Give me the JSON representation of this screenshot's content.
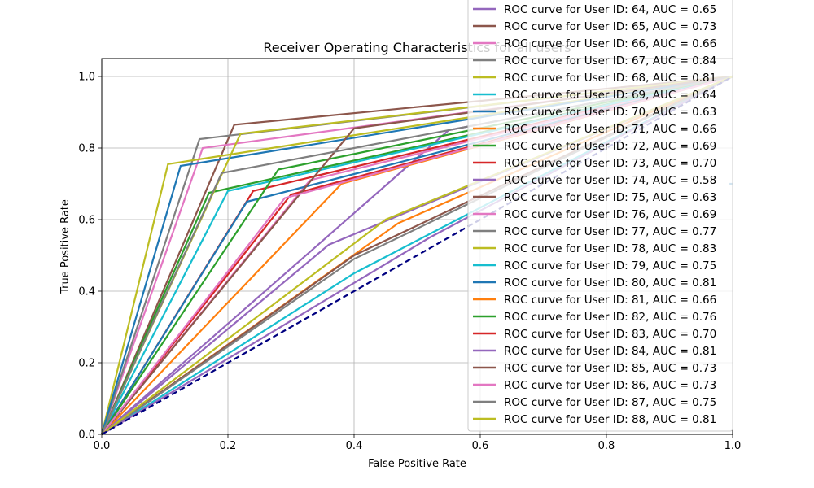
{
  "chart_data": {
    "type": "line",
    "title": "Receiver Operating Characteristics for all users",
    "xlabel": "False Positive Rate",
    "ylabel": "True Positive Rate",
    "xlim": [
      0.0,
      1.0
    ],
    "ylim": [
      0.0,
      1.05
    ],
    "xticks": [
      "0.0",
      "0.2",
      "0.4",
      "0.6",
      "0.8",
      "1.0"
    ],
    "yticks": [
      "0.0",
      "0.2",
      "0.4",
      "0.6",
      "0.8",
      "1.0"
    ],
    "grid": true,
    "legend_placement": "upper-right (extends above the axes)",
    "baseline": {
      "x": [
        0,
        1
      ],
      "y": [
        0,
        1
      ],
      "color": "#000080",
      "style": "dashed"
    },
    "series": [
      {
        "name": "ROC curve for User ID: 64, AUC = 0.65",
        "color": "#9467bd",
        "x": [
          0,
          0.55,
          1
        ],
        "y": [
          0,
          0.85,
          1
        ]
      },
      {
        "name": "ROC curve for User ID: 65, AUC = 0.73",
        "color": "#8c564b",
        "x": [
          0,
          0.21,
          1
        ],
        "y": [
          0,
          0.865,
          1
        ]
      },
      {
        "name": "ROC curve for User ID: 66, AUC = 0.66",
        "color": "#e377c2",
        "x": [
          0,
          0.16,
          1
        ],
        "y": [
          0,
          0.8,
          1
        ]
      },
      {
        "name": "ROC curve for User ID: 67, AUC = 0.84",
        "color": "#7f7f7f",
        "x": [
          0,
          0.155,
          1
        ],
        "y": [
          0,
          0.825,
          1
        ]
      },
      {
        "name": "ROC curve for User ID: 68, AUC = 0.81",
        "color": "#bcbd22",
        "x": [
          0,
          0.105,
          1
        ],
        "y": [
          0,
          0.755,
          1
        ]
      },
      {
        "name": "ROC curve for User ID: 69, AUC = 0.64",
        "color": "#17becf",
        "x": [
          0,
          0.4,
          1
        ],
        "y": [
          0,
          0.45,
          1
        ]
      },
      {
        "name": "ROC curve for User ID: 70, AUC = 0.63",
        "color": "#1f77b4",
        "x": [
          0,
          0.125,
          1
        ],
        "y": [
          0,
          0.75,
          1
        ]
      },
      {
        "name": "ROC curve for User ID: 71, AUC = 0.66",
        "color": "#ff7f0e",
        "x": [
          0,
          0.47,
          1
        ],
        "y": [
          0,
          0.59,
          1
        ]
      },
      {
        "name": "ROC curve for User ID: 72, AUC = 0.69",
        "color": "#2ca02c",
        "x": [
          0,
          0.17,
          1
        ],
        "y": [
          0,
          0.675,
          1
        ]
      },
      {
        "name": "ROC curve for User ID: 73, AUC = 0.70",
        "color": "#d62728",
        "x": [
          0,
          0.24,
          1
        ],
        "y": [
          0,
          0.68,
          1
        ]
      },
      {
        "name": "ROC curve for User ID: 74, AUC = 0.58",
        "color": "#9467bd",
        "x": [
          0,
          0.52,
          1
        ],
        "y": [
          0,
          0.55,
          1
        ]
      },
      {
        "name": "ROC curve for User ID: 75, AUC = 0.63",
        "color": "#8c564b",
        "x": [
          0,
          0.4,
          1
        ],
        "y": [
          0,
          0.5,
          1
        ]
      },
      {
        "name": "ROC curve for User ID: 76, AUC = 0.69",
        "color": "#e377c2",
        "x": [
          0,
          0.33,
          1
        ],
        "y": [
          0,
          0.71,
          1
        ]
      },
      {
        "name": "ROC curve for User ID: 77, AUC = 0.77",
        "color": "#7f7f7f",
        "x": [
          0,
          0.4,
          1
        ],
        "y": [
          0,
          0.49,
          1
        ]
      },
      {
        "name": "ROC curve for User ID: 78, AUC = 0.83",
        "color": "#bcbd22",
        "x": [
          0,
          0.22,
          1
        ],
        "y": [
          0,
          0.84,
          1
        ]
      },
      {
        "name": "ROC curve for User ID: 79, AUC = 0.75",
        "color": "#17becf",
        "x": [
          0,
          0.2,
          1
        ],
        "y": [
          0,
          0.68,
          1
        ]
      },
      {
        "name": "ROC curve for User ID: 80, AUC = 0.81",
        "color": "#1f77b4",
        "x": [
          0,
          0.23,
          1
        ],
        "y": [
          0,
          0.65,
          1
        ]
      },
      {
        "name": "ROC curve for User ID: 81, AUC = 0.66",
        "color": "#ff7f0e",
        "x": [
          0,
          0.38,
          1
        ],
        "y": [
          0,
          0.7,
          1
        ]
      },
      {
        "name": "ROC curve for User ID: 82, AUC = 0.76",
        "color": "#2ca02c",
        "x": [
          0,
          0.28,
          1
        ],
        "y": [
          0,
          0.74,
          1
        ]
      },
      {
        "name": "ROC curve for User ID: 83, AUC = 0.70",
        "color": "#d62728",
        "x": [
          0,
          0.3,
          1
        ],
        "y": [
          0,
          0.67,
          1
        ]
      },
      {
        "name": "ROC curve for User ID: 84, AUC = 0.81",
        "color": "#9467bd",
        "x": [
          0,
          0.36,
          1
        ],
        "y": [
          0,
          0.53,
          1
        ]
      },
      {
        "name": "ROC curve for User ID: 85, AUC = 0.73",
        "color": "#8c564b",
        "x": [
          0,
          0.4,
          1
        ],
        "y": [
          0,
          0.855,
          1
        ]
      },
      {
        "name": "ROC curve for User ID: 86, AUC = 0.73",
        "color": "#e377c2",
        "x": [
          0,
          0.29,
          1
        ],
        "y": [
          0,
          0.66,
          1
        ]
      },
      {
        "name": "ROC curve for User ID: 87, AUC = 0.75",
        "color": "#7f7f7f",
        "x": [
          0,
          0.19,
          1
        ],
        "y": [
          0,
          0.73,
          1
        ]
      },
      {
        "name": "ROC curve for User ID: 88, AUC = 0.81",
        "color": "#bcbd22",
        "x": [
          0,
          0.45,
          1
        ],
        "y": [
          0,
          0.6,
          1
        ]
      }
    ]
  }
}
